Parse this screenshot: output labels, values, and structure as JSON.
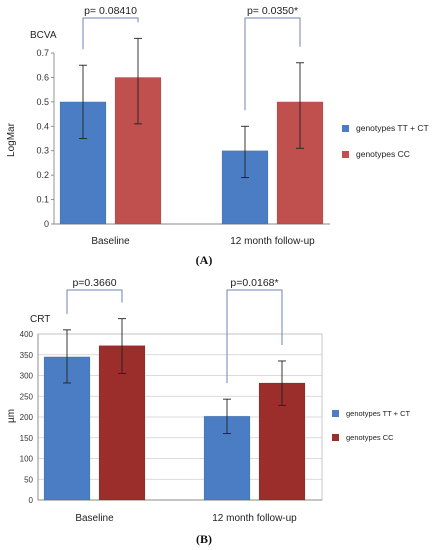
{
  "figure": {
    "panel_a_label": "(A)",
    "panel_b_label": "(B)"
  },
  "chart_data": [
    {
      "type": "bar",
      "title": "BCVA",
      "ylabel": "LogMar",
      "xlabel": "",
      "categories": [
        "Baseline",
        "12 month follow-up"
      ],
      "ylim": [
        0,
        0.7
      ],
      "yticks": [
        "0",
        "0.1",
        "0.2",
        "0.3",
        "0.4",
        "0.5",
        "0.6",
        "0.7"
      ],
      "series": [
        {
          "name": "genotypes TT + CT",
          "values": [
            0.5,
            0.3
          ],
          "error_low": [
            0.35,
            0.19
          ],
          "error_high": [
            0.65,
            0.4
          ],
          "color": "#4a7dc3"
        },
        {
          "name": "genotypes CC",
          "values": [
            0.6,
            0.5
          ],
          "error_low": [
            0.41,
            0.31
          ],
          "error_high": [
            0.76,
            0.66
          ],
          "color": "#c0504d"
        }
      ],
      "annotations": [
        "p= 0.08410",
        "p= 0.0350*"
      ],
      "grid": false,
      "legend_position": "right"
    },
    {
      "type": "bar",
      "title": "CRT",
      "ylabel": "µm",
      "xlabel": "",
      "categories": [
        "Baseline",
        "12 month follow-up"
      ],
      "ylim": [
        0,
        400
      ],
      "yticks": [
        "0",
        "50",
        "100",
        "150",
        "200",
        "250",
        "300",
        "350",
        "400"
      ],
      "series": [
        {
          "name": "genotypes TT + CT",
          "values": [
            345,
            202
          ],
          "error_low": [
            282,
            160
          ],
          "error_high": [
            410,
            243
          ],
          "color": "#4a7dc3"
        },
        {
          "name": "genotypes CC",
          "values": [
            372,
            282
          ],
          "error_low": [
            305,
            228
          ],
          "error_high": [
            437,
            335
          ],
          "color": "#9b2d2a"
        }
      ],
      "annotations": [
        "p=0.3660",
        "p=0.0168*"
      ],
      "grid": true,
      "legend_position": "right"
    }
  ]
}
